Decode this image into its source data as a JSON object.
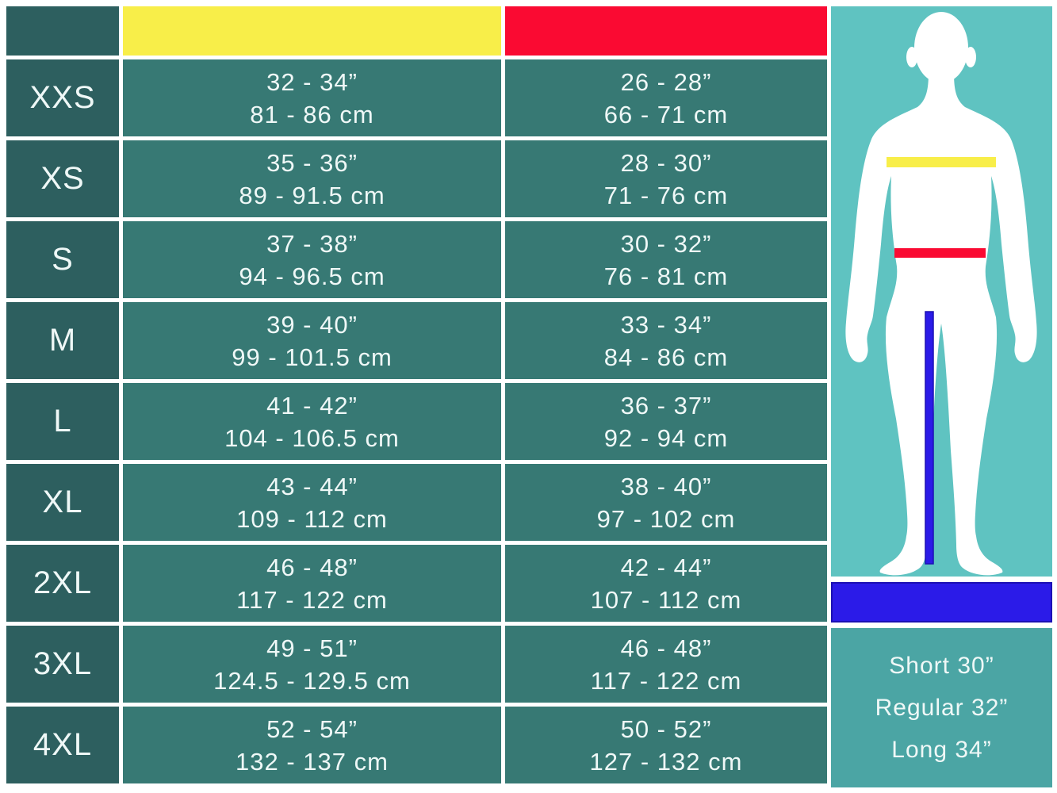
{
  "table": {
    "columns": {
      "size": "",
      "chest_header_swatch": "yellow",
      "waist_header_swatch": "red"
    },
    "rows": [
      {
        "size": "XXS",
        "chest_in": "32 - 34”",
        "chest_cm": "81 - 86 cm",
        "waist_in": "26 - 28”",
        "waist_cm": "66 - 71 cm"
      },
      {
        "size": "XS",
        "chest_in": "35 - 36”",
        "chest_cm": "89 - 91.5 cm",
        "waist_in": "28 - 30”",
        "waist_cm": "71 - 76 cm"
      },
      {
        "size": "S",
        "chest_in": "37 - 38”",
        "chest_cm": "94 - 96.5 cm",
        "waist_in": "30 - 32”",
        "waist_cm": "76 - 81 cm"
      },
      {
        "size": "M",
        "chest_in": "39 - 40”",
        "chest_cm": "99 - 101.5 cm",
        "waist_in": "33 - 34”",
        "waist_cm": "84 - 86 cm"
      },
      {
        "size": "L",
        "chest_in": "41 - 42”",
        "chest_cm": "104 - 106.5 cm",
        "waist_in": "36 - 37”",
        "waist_cm": "92 - 94 cm"
      },
      {
        "size": "XL",
        "chest_in": "43 - 44”",
        "chest_cm": "109 - 112 cm",
        "waist_in": "38 - 40”",
        "waist_cm": "97 - 102 cm"
      },
      {
        "size": "2XL",
        "chest_in": "46 - 48”",
        "chest_cm": "117 - 122 cm",
        "waist_in": "42 - 44”",
        "waist_cm": "107 - 112 cm"
      },
      {
        "size": "3XL",
        "chest_in": "49 - 51”",
        "chest_cm": "124.5 - 129.5 cm",
        "waist_in": "46 - 48”",
        "waist_cm": "117 - 122 cm"
      },
      {
        "size": "4XL",
        "chest_in": "52 - 54”",
        "chest_cm": "132 - 137 cm",
        "waist_in": "50 - 52”",
        "waist_cm": "127 - 132 cm"
      }
    ]
  },
  "figure": {
    "markers": {
      "chest_line": "yellow",
      "waist_line": "red",
      "inseam_line": "blue"
    }
  },
  "legend": {
    "fit_options": [
      "Short 30”",
      "Regular 32”",
      "Long 34”"
    ]
  },
  "colors": {
    "size_column": "#2D5F5F",
    "value_cell": "#377974",
    "chest_header": "#F8EE49",
    "waist_header": "#FA0A32",
    "figure_panel": "#5FC3C1",
    "legend_panel": "#4BA5A4",
    "inseam_blue": "#2B1BE8",
    "text": "#EFF8F7"
  }
}
